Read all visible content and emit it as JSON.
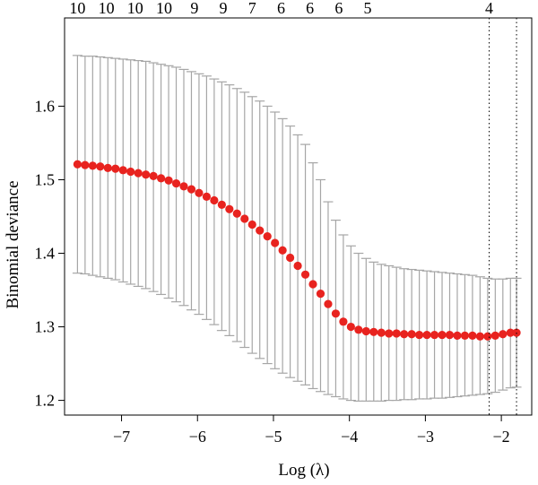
{
  "chart_data": {
    "type": "scatter",
    "xlabel": "Log (λ)",
    "ylabel": "Binomial deviance",
    "xlim": [
      -7.75,
      -1.6
    ],
    "ylim": [
      1.18,
      1.72
    ],
    "xticks": [
      -7,
      -6,
      -5,
      -4,
      -3,
      -2
    ],
    "xtick_labels": [
      "−7",
      "−6",
      "−5",
      "−4",
      "−3",
      "−2"
    ],
    "yticks": [
      1.2,
      1.3,
      1.4,
      1.5,
      1.6
    ],
    "ytick_labels": [
      "1.2",
      "1.3",
      "1.4",
      "1.5",
      "1.6"
    ],
    "top_axis": {
      "x": [
        -7.58,
        -7.2,
        -6.82,
        -6.44,
        -6.04,
        -5.66,
        -5.28,
        -4.9,
        -4.52,
        -4.14,
        -3.76
      ],
      "labels": [
        "10",
        "10",
        "10",
        "10",
        "9",
        "9",
        "7",
        "6",
        "6",
        "6",
        "5"
      ]
    },
    "top_axis_extra": {
      "x": -2.16,
      "label": "4"
    },
    "vlines": [
      -2.16,
      -1.8
    ],
    "point_color": "#e8231f",
    "errorbar_color": "#a6a6a6",
    "grid": false,
    "series": [
      {
        "x": [
          -7.58,
          -7.48,
          -7.38,
          -7.28,
          -7.18,
          -7.08,
          -6.98,
          -6.88,
          -6.78,
          -6.68,
          -6.58,
          -6.48,
          -6.38,
          -6.28,
          -6.18,
          -6.08,
          -5.98,
          -5.88,
          -5.78,
          -5.68,
          -5.58,
          -5.48,
          -5.38,
          -5.28,
          -5.18,
          -5.08,
          -4.98,
          -4.88,
          -4.78,
          -4.68,
          -4.58,
          -4.48,
          -4.38,
          -4.28,
          -4.18,
          -4.08,
          -3.98,
          -3.88,
          -3.78,
          -3.68,
          -3.58,
          -3.48,
          -3.38,
          -3.28,
          -3.18,
          -3.08,
          -2.98,
          -2.88,
          -2.78,
          -2.68,
          -2.58,
          -2.48,
          -2.38,
          -2.28,
          -2.18,
          -2.08,
          -1.98,
          -1.88,
          -1.8
        ],
        "y": [
          1.521,
          1.52,
          1.519,
          1.518,
          1.516,
          1.515,
          1.513,
          1.511,
          1.509,
          1.507,
          1.505,
          1.502,
          1.499,
          1.495,
          1.491,
          1.487,
          1.482,
          1.477,
          1.472,
          1.466,
          1.46,
          1.454,
          1.447,
          1.439,
          1.431,
          1.423,
          1.414,
          1.404,
          1.394,
          1.383,
          1.371,
          1.358,
          1.345,
          1.331,
          1.318,
          1.307,
          1.3,
          1.296,
          1.294,
          1.293,
          1.292,
          1.291,
          1.291,
          1.29,
          1.29,
          1.289,
          1.289,
          1.289,
          1.289,
          1.289,
          1.288,
          1.288,
          1.288,
          1.287,
          1.287,
          1.288,
          1.29,
          1.292,
          1.292
        ],
        "lower": [
          1.373,
          1.372,
          1.37,
          1.368,
          1.366,
          1.364,
          1.361,
          1.358,
          1.355,
          1.352,
          1.348,
          1.344,
          1.339,
          1.334,
          1.329,
          1.323,
          1.317,
          1.31,
          1.303,
          1.295,
          1.288,
          1.28,
          1.272,
          1.264,
          1.257,
          1.25,
          1.243,
          1.237,
          1.231,
          1.226,
          1.221,
          1.216,
          1.212,
          1.208,
          1.205,
          1.202,
          1.2,
          1.199,
          1.199,
          1.199,
          1.199,
          1.2,
          1.2,
          1.201,
          1.201,
          1.202,
          1.202,
          1.203,
          1.203,
          1.204,
          1.205,
          1.206,
          1.207,
          1.208,
          1.209,
          1.211,
          1.214,
          1.217,
          1.218
        ],
        "upper": [
          1.669,
          1.668,
          1.668,
          1.667,
          1.666,
          1.665,
          1.664,
          1.663,
          1.662,
          1.661,
          1.659,
          1.657,
          1.655,
          1.653,
          1.65,
          1.647,
          1.644,
          1.641,
          1.637,
          1.633,
          1.629,
          1.624,
          1.619,
          1.613,
          1.607,
          1.6,
          1.592,
          1.583,
          1.573,
          1.561,
          1.548,
          1.523,
          1.5,
          1.47,
          1.445,
          1.425,
          1.41,
          1.4,
          1.393,
          1.388,
          1.385,
          1.383,
          1.381,
          1.379,
          1.378,
          1.377,
          1.376,
          1.375,
          1.374,
          1.373,
          1.372,
          1.371,
          1.37,
          1.368,
          1.366,
          1.365,
          1.365,
          1.366,
          1.366
        ]
      }
    ]
  }
}
